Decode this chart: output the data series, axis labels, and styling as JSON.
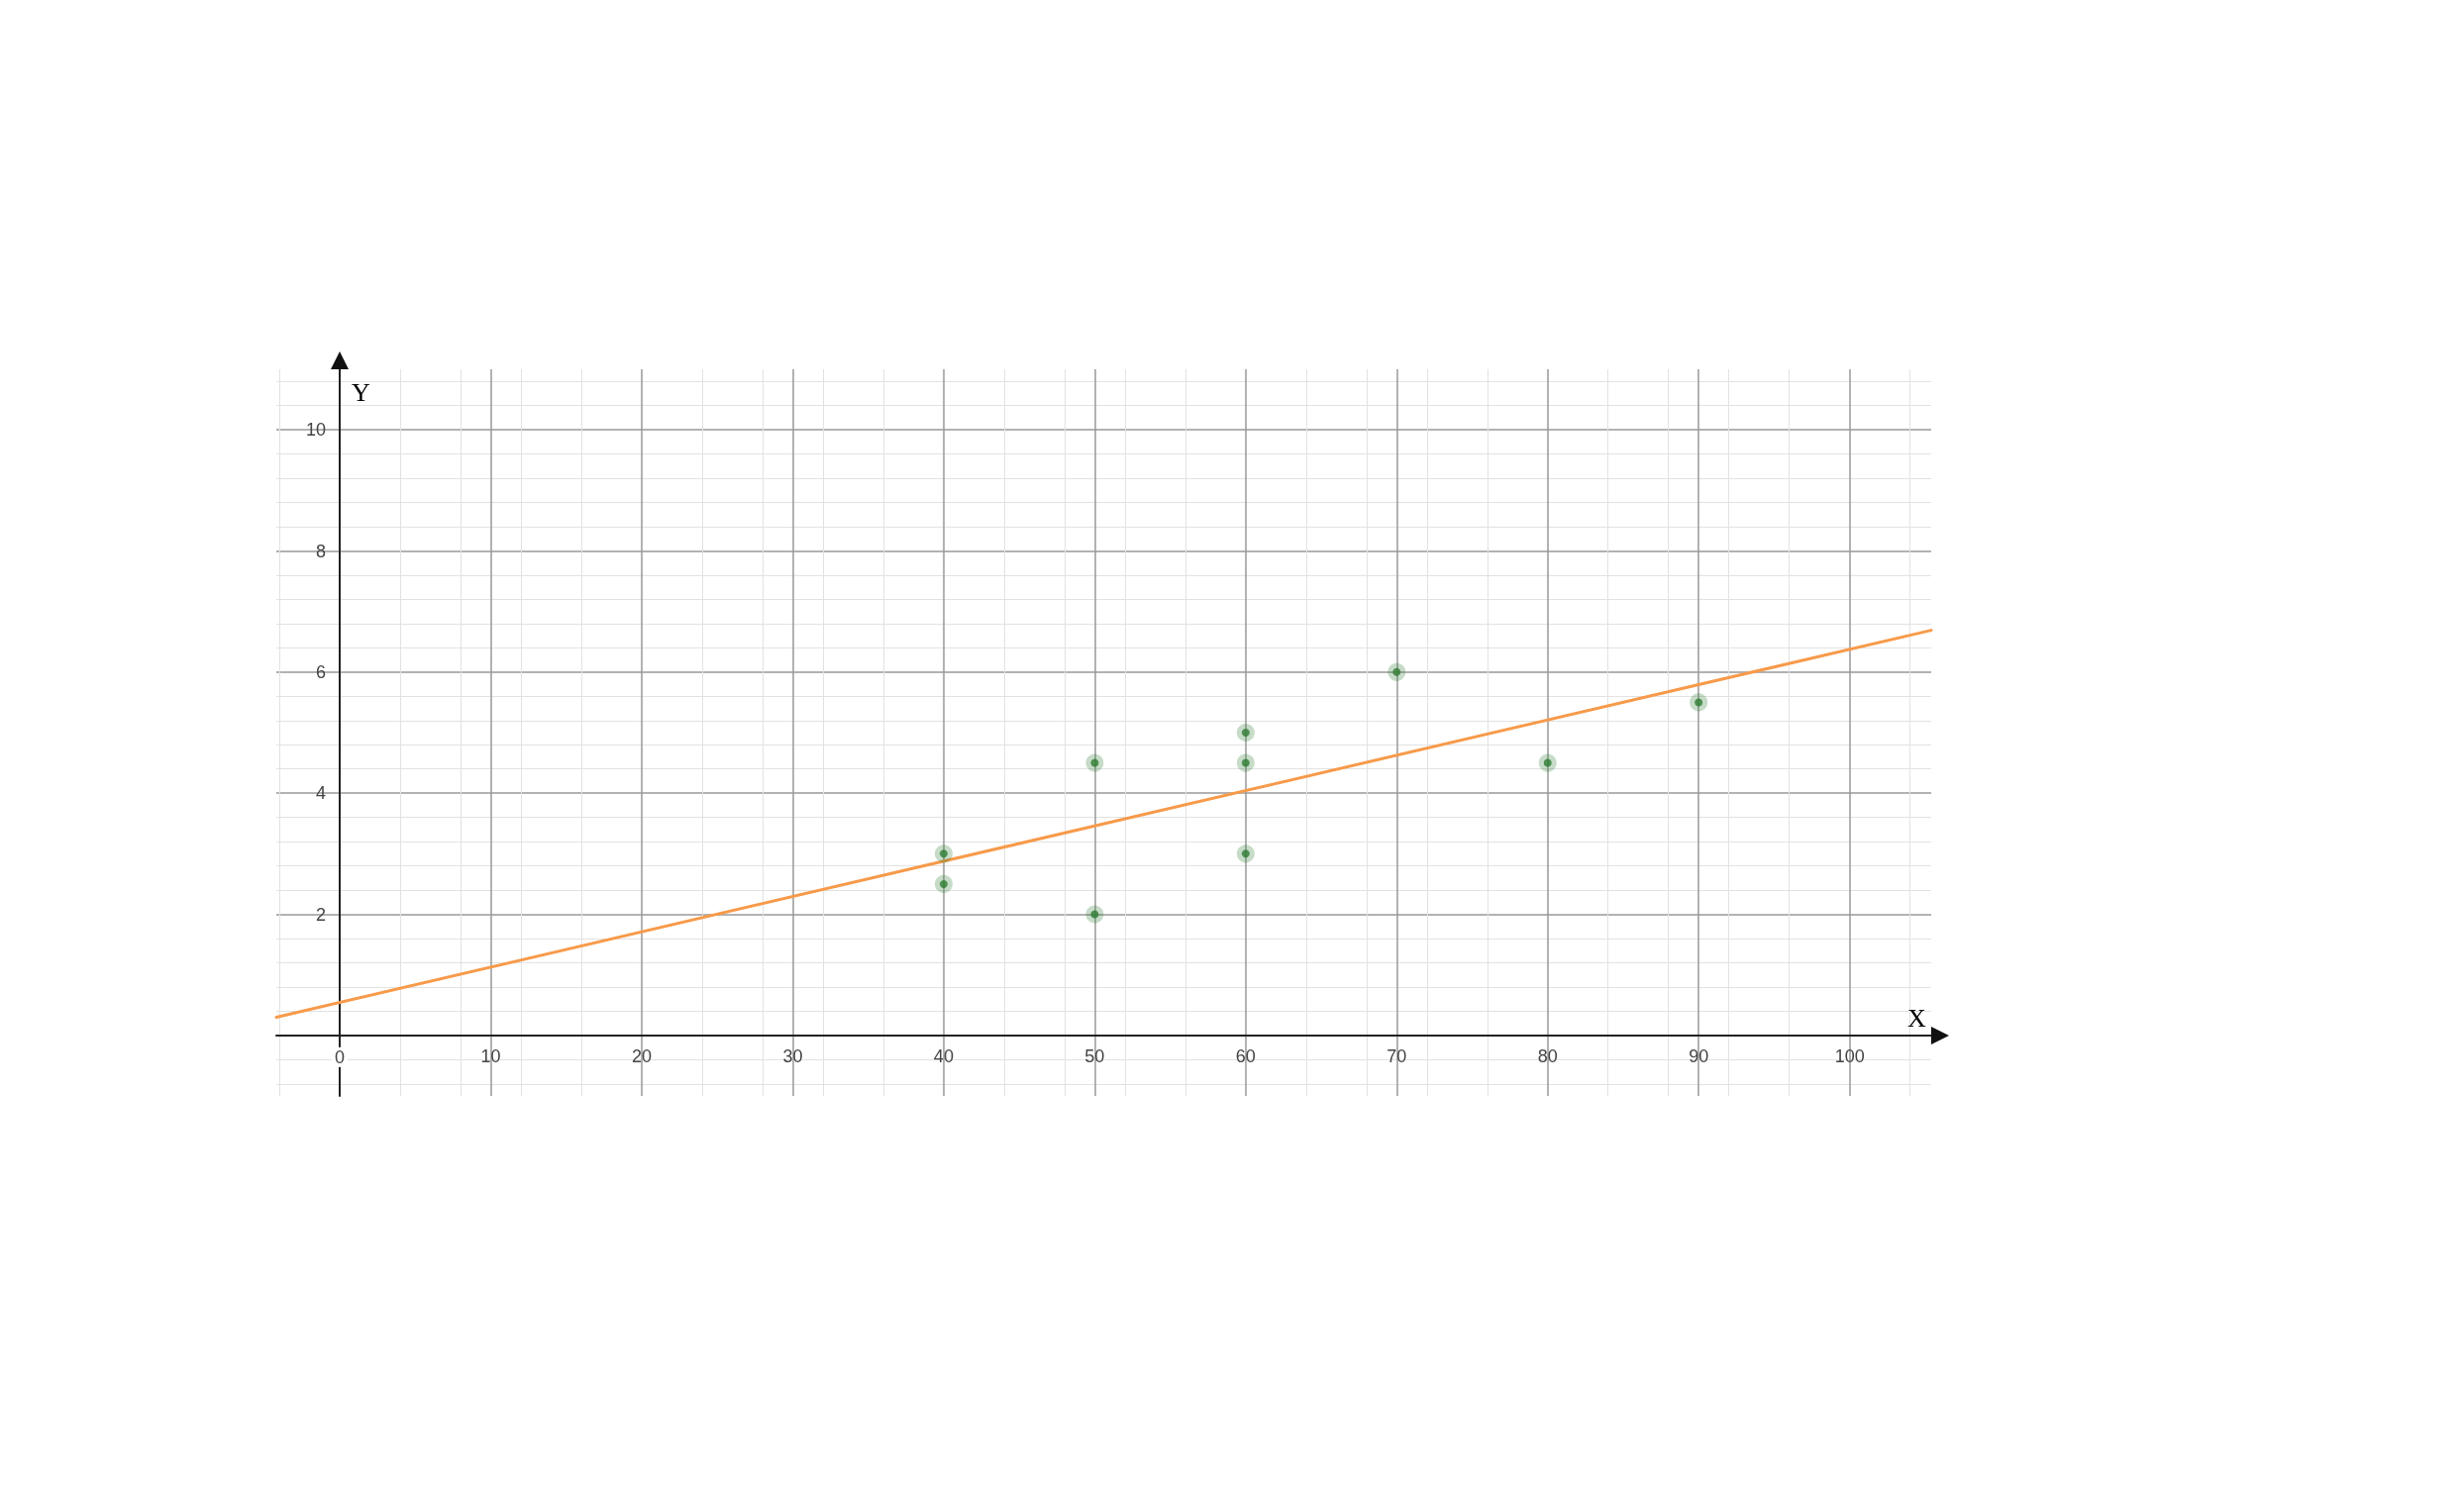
{
  "chart_data": {
    "type": "scatter",
    "xlabel": "X",
    "ylabel": "Y",
    "xlim": [
      -4.2,
      105.4
    ],
    "ylim": [
      -1,
      11
    ],
    "xticks": [
      0,
      10,
      20,
      30,
      40,
      50,
      60,
      70,
      80,
      90,
      100
    ],
    "yticks": [
      {
        "value": 0,
        "label": null
      },
      2,
      4,
      6,
      8,
      10
    ],
    "grid": true,
    "marker": "circle",
    "series": [
      {
        "color": "#2e7d32",
        "x": [
          40,
          40,
          50,
          50,
          60,
          60,
          60,
          70,
          80,
          90
        ],
        "values": [
          3,
          2.5,
          4.5,
          2,
          5,
          4.5,
          3,
          6,
          4.5,
          5.5
        ]
      },
      {
        "type": "line",
        "color": "#f79a4a",
        "marker": "none",
        "line_style": "solid",
        "x": [
          -4.2,
          105.4
        ],
        "values": [
          0.3,
          6.69
        ]
      }
    ]
  }
}
